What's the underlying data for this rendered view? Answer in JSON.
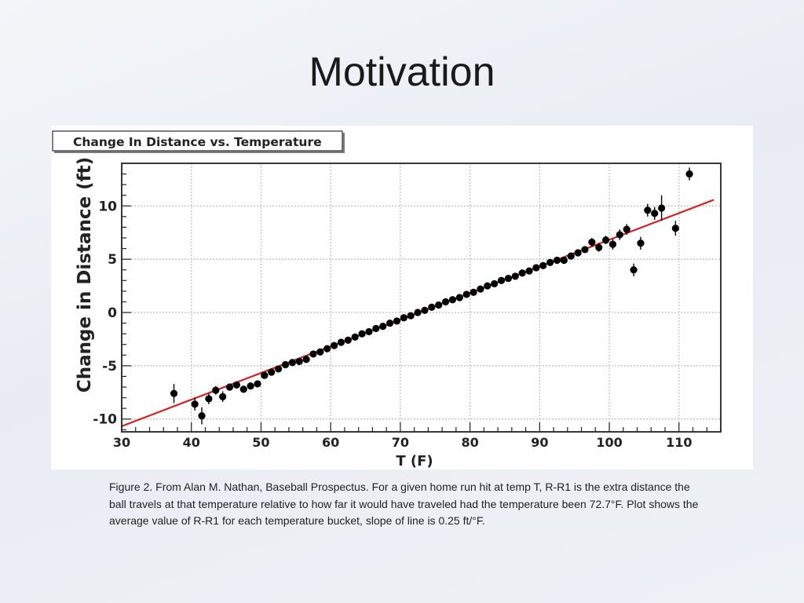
{
  "slide": {
    "title": "Motivation",
    "caption": "Figure 2. From Alan M. Nathan, Baseball Prospectus.  For a given home run hit at temp T, R-R1 is the extra distance the ball travels at that temperature relative to how far it would have traveled had the temperature been 72.7°F.  Plot shows the average value of R-R1 for each temperature bucket, slope of line is 0.25 ft/°F."
  },
  "chart_data": {
    "type": "scatter",
    "title": "Change In Distance vs. Temperature",
    "xlabel": "T (F)",
    "ylabel": "Change in Distance (ft)",
    "xlim": [
      30,
      116
    ],
    "ylim": [
      -11.2,
      14
    ],
    "xticks": [
      30,
      40,
      50,
      60,
      70,
      80,
      90,
      100,
      110
    ],
    "yticks": [
      -10,
      -5,
      0,
      5,
      10
    ],
    "grid": true,
    "colors": {
      "points": "#000000",
      "fit_line": "#d42020",
      "grid": "#bdbdbd"
    },
    "fit_line": {
      "slope": 0.25,
      "intercept": -18.175,
      "x_range": [
        30,
        115
      ]
    },
    "points": [
      {
        "x": 37.5,
        "y": -7.6,
        "err": 0.9
      },
      {
        "x": 40.5,
        "y": -8.6,
        "err": 0.6
      },
      {
        "x": 41.5,
        "y": -9.7,
        "err": 0.8
      },
      {
        "x": 42.5,
        "y": -8.1,
        "err": 0.5
      },
      {
        "x": 43.5,
        "y": -7.3,
        "err": 0.4
      },
      {
        "x": 44.5,
        "y": -7.9,
        "err": 0.5
      },
      {
        "x": 45.5,
        "y": -7.0,
        "err": 0.3
      },
      {
        "x": 46.5,
        "y": -6.8,
        "err": 0.3
      },
      {
        "x": 47.5,
        "y": -7.2,
        "err": 0.3
      },
      {
        "x": 48.5,
        "y": -6.9,
        "err": 0.3
      },
      {
        "x": 49.5,
        "y": -6.7,
        "err": 0.3
      },
      {
        "x": 50.5,
        "y": -5.9,
        "err": 0.2
      },
      {
        "x": 51.5,
        "y": -5.6,
        "err": 0.2
      },
      {
        "x": 52.5,
        "y": -5.3,
        "err": 0.2
      },
      {
        "x": 53.5,
        "y": -4.9,
        "err": 0.2
      },
      {
        "x": 54.5,
        "y": -4.7,
        "err": 0.2
      },
      {
        "x": 55.5,
        "y": -4.6,
        "err": 0.2
      },
      {
        "x": 56.5,
        "y": -4.4,
        "err": 0.2
      },
      {
        "x": 57.5,
        "y": -3.9,
        "err": 0.2
      },
      {
        "x": 58.5,
        "y": -3.7,
        "err": 0.2
      },
      {
        "x": 59.5,
        "y": -3.4,
        "err": 0.2
      },
      {
        "x": 60.5,
        "y": -3.1,
        "err": 0.2
      },
      {
        "x": 61.5,
        "y": -2.8,
        "err": 0.2
      },
      {
        "x": 62.5,
        "y": -2.6,
        "err": 0.2
      },
      {
        "x": 63.5,
        "y": -2.3,
        "err": 0.2
      },
      {
        "x": 64.5,
        "y": -2.0,
        "err": 0.2
      },
      {
        "x": 65.5,
        "y": -1.8,
        "err": 0.2
      },
      {
        "x": 66.5,
        "y": -1.5,
        "err": 0.2
      },
      {
        "x": 67.5,
        "y": -1.3,
        "err": 0.2
      },
      {
        "x": 68.5,
        "y": -1.0,
        "err": 0.2
      },
      {
        "x": 69.5,
        "y": -0.8,
        "err": 0.2
      },
      {
        "x": 70.5,
        "y": -0.5,
        "err": 0.2
      },
      {
        "x": 71.5,
        "y": -0.3,
        "err": 0.2
      },
      {
        "x": 72.5,
        "y": 0.0,
        "err": 0.2
      },
      {
        "x": 73.5,
        "y": 0.2,
        "err": 0.2
      },
      {
        "x": 74.5,
        "y": 0.5,
        "err": 0.2
      },
      {
        "x": 75.5,
        "y": 0.7,
        "err": 0.2
      },
      {
        "x": 76.5,
        "y": 1.0,
        "err": 0.2
      },
      {
        "x": 77.5,
        "y": 1.2,
        "err": 0.2
      },
      {
        "x": 78.5,
        "y": 1.4,
        "err": 0.2
      },
      {
        "x": 79.5,
        "y": 1.7,
        "err": 0.2
      },
      {
        "x": 80.5,
        "y": 1.9,
        "err": 0.2
      },
      {
        "x": 81.5,
        "y": 2.2,
        "err": 0.2
      },
      {
        "x": 82.5,
        "y": 2.5,
        "err": 0.2
      },
      {
        "x": 83.5,
        "y": 2.7,
        "err": 0.2
      },
      {
        "x": 84.5,
        "y": 3.0,
        "err": 0.2
      },
      {
        "x": 85.5,
        "y": 3.2,
        "err": 0.2
      },
      {
        "x": 86.5,
        "y": 3.4,
        "err": 0.2
      },
      {
        "x": 87.5,
        "y": 3.7,
        "err": 0.2
      },
      {
        "x": 88.5,
        "y": 3.9,
        "err": 0.2
      },
      {
        "x": 89.5,
        "y": 4.2,
        "err": 0.2
      },
      {
        "x": 90.5,
        "y": 4.4,
        "err": 0.2
      },
      {
        "x": 91.5,
        "y": 4.7,
        "err": 0.2
      },
      {
        "x": 92.5,
        "y": 4.9,
        "err": 0.2
      },
      {
        "x": 93.5,
        "y": 4.9,
        "err": 0.3
      },
      {
        "x": 94.5,
        "y": 5.3,
        "err": 0.3
      },
      {
        "x": 95.5,
        "y": 5.6,
        "err": 0.3
      },
      {
        "x": 96.5,
        "y": 5.9,
        "err": 0.3
      },
      {
        "x": 97.5,
        "y": 6.6,
        "err": 0.4
      },
      {
        "x": 98.5,
        "y": 6.1,
        "err": 0.4
      },
      {
        "x": 99.5,
        "y": 6.8,
        "err": 0.4
      },
      {
        "x": 100.5,
        "y": 6.4,
        "err": 0.5
      },
      {
        "x": 101.5,
        "y": 7.3,
        "err": 0.5
      },
      {
        "x": 102.5,
        "y": 7.8,
        "err": 0.5
      },
      {
        "x": 103.5,
        "y": 4.0,
        "err": 0.6
      },
      {
        "x": 104.5,
        "y": 6.5,
        "err": 0.6
      },
      {
        "x": 105.5,
        "y": 9.6,
        "err": 0.6
      },
      {
        "x": 106.5,
        "y": 9.3,
        "err": 0.6
      },
      {
        "x": 107.5,
        "y": 9.8,
        "err": 1.2
      },
      {
        "x": 109.5,
        "y": 7.9,
        "err": 0.7
      },
      {
        "x": 111.5,
        "y": 13.0,
        "err": 0.6
      }
    ]
  }
}
